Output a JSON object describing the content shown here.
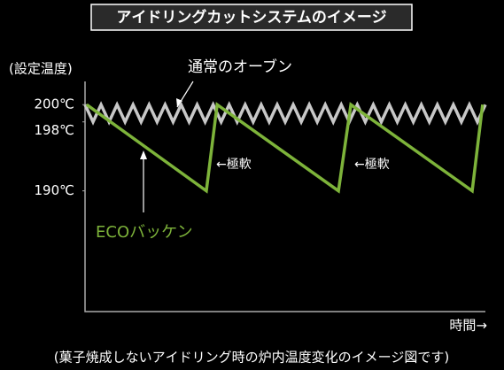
{
  "chart_data": {
    "type": "line",
    "title": "アイドリングカットシステムのイメージ",
    "y_label": "(設定温度)",
    "x_label": "時間→",
    "caption": "(菓子焼成しないアイドリング時の炉内温度変化のイメージ図です)",
    "annotations": [
      "←極軟",
      "←極軟"
    ],
    "xlim": [
      0,
      100
    ],
    "ylim": [
      176,
      203
    ],
    "yticks": [
      {
        "value": 200,
        "label": "200℃"
      },
      {
        "value": 198,
        "label": "198℃"
      },
      {
        "value": 190,
        "label": "190℃"
      }
    ],
    "series": [
      {
        "name": "通常のオーブン",
        "color": "#c8c8c8",
        "x": [
          0,
          2,
          4,
          6,
          8,
          10,
          12,
          14,
          16,
          18,
          20,
          22,
          24,
          26,
          28,
          30,
          32,
          34,
          36,
          38,
          40,
          42,
          44,
          46,
          48,
          50,
          52,
          54,
          56,
          58,
          60,
          62,
          64,
          66,
          68,
          70,
          72,
          74,
          76,
          78,
          80,
          82,
          84,
          86,
          88,
          90,
          92,
          94,
          96,
          98,
          100
        ],
        "values": [
          200,
          198,
          200,
          198,
          200,
          198,
          200,
          198,
          200,
          198,
          200,
          198,
          200,
          198,
          200,
          198,
          200,
          198,
          200,
          198,
          200,
          198,
          200,
          198,
          200,
          198,
          200,
          198,
          200,
          198,
          200,
          198,
          200,
          198,
          200,
          198,
          200,
          198,
          200,
          198,
          200,
          198,
          200,
          198,
          200,
          198,
          200,
          198,
          200,
          198,
          200
        ]
      },
      {
        "name": "ECOバッケン",
        "color": "#7db33a",
        "x": [
          0.4,
          30.3,
          33,
          63.3,
          66.4,
          96.7,
          99.3
        ],
        "values": [
          200,
          190,
          200,
          190,
          200,
          190,
          200
        ]
      }
    ]
  }
}
